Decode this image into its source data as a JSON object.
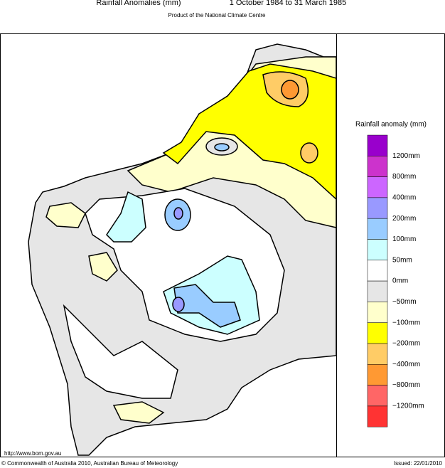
{
  "header": {
    "title": "Rainfall Anomalies (mm)",
    "period": "1 October 1984 to 31 March 1985",
    "subtitle": "Product of the National Climate Centre"
  },
  "legend": {
    "title": "Rainfall anomaly (mm)",
    "colors": [
      "#9900cc",
      "#cc33cc",
      "#cc66ff",
      "#9999ff",
      "#99ccff",
      "#ccffff",
      "#ffffff",
      "#e6e6e6",
      "#ffffcc",
      "#ffff00",
      "#ffcc66",
      "#ff9933",
      "#ff6666",
      "#ff3333"
    ],
    "labels": [
      "1200mm",
      "800mm",
      "400mm",
      "200mm",
      "100mm",
      "50mm",
      "0mm",
      "−50mm",
      "−100mm",
      "−200mm",
      "−400mm",
      "−800mm",
      "−1200mm"
    ]
  },
  "footer": {
    "url": "http://www.bom.gov.au",
    "copyright": "© Commonwealth of Australia 2010, Australian Bureau of Meteorology",
    "issued": "Issued: 22/01/2010"
  }
}
